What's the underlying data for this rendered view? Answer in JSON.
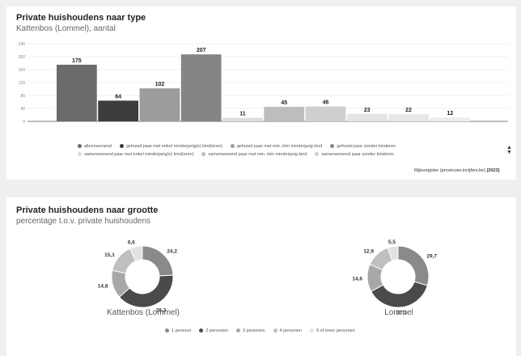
{
  "card1": {
    "title": "Private huishoudens naar type",
    "subtitle": "Kattenbos  (Lommel), aantal",
    "source_text": "Rijksregister (provincies.incijfers.be)",
    "source_year": "2023"
  },
  "card2": {
    "title": "Private huishoudens naar grootte",
    "subtitle": "percentage t.o.v. private huishoudens"
  },
  "chart_data": [
    {
      "type": "bar",
      "categories": [
        "alleenwonend",
        "gehuwd paar met enkel minderjarig(e) kind(eren)",
        "gehuwd paar met min. één minderjarig kind",
        "gehuwd paar zonder kinderen",
        "samenwonend paar met enkel minderjarig(e) kind(eren)",
        "samenwonend paar met min. één minderjarig kind",
        "samenwonend paar zonder kinderen",
        "",
        "",
        "",
        ""
      ],
      "values": [
        175,
        64,
        102,
        207,
        11,
        45,
        46,
        23,
        22,
        12,
        0
      ],
      "colors": [
        "#6b6b6b",
        "#3c3c3c",
        "#9c9c9c",
        "#858585",
        "#dcdcdc",
        "#bdbdbd",
        "#cfcfcf",
        "#e4e4e4",
        "#e8e8e8",
        "#ececec",
        "#ffffff"
      ],
      "yticks": [
        0,
        40,
        80,
        120,
        160,
        200,
        240
      ],
      "ylim": [
        0,
        240
      ],
      "legend": [
        {
          "label": "alleenwonend",
          "color": "#6b6b6b"
        },
        {
          "label": "gehuwd paar met enkel minderjarig(e) kind(eren)",
          "color": "#3c3c3c"
        },
        {
          "label": "gehuwd paar met min. één minderjarig kind",
          "color": "#9c9c9c"
        },
        {
          "label": "gehuwd paar zonder kinderen",
          "color": "#858585"
        },
        {
          "label": "samenwonend paar met enkel minderjarig(e) kind(eren)",
          "color": "#dcdcdc"
        },
        {
          "label": "samenwonend paar met min. één minderjarig kind",
          "color": "#bdbdbd"
        },
        {
          "label": "samenwonend paar zonder kinderen",
          "color": "#cfcfcf"
        }
      ],
      "grid": true,
      "legend_position": "bottom"
    },
    {
      "type": "pie",
      "donut": true,
      "name": "Kattenbos  (Lommel)",
      "labels": [
        "1 persoon",
        "2 personen",
        "3 personen",
        "4 personen",
        "5 of meer personen"
      ],
      "values": [
        24.2,
        39.3,
        14.8,
        15.1,
        6.6
      ],
      "value_labels": [
        "24,2",
        "39,3",
        "14,8",
        "15,1",
        "6,6"
      ]
    },
    {
      "type": "pie",
      "donut": true,
      "name": "Lommel",
      "labels": [
        "1 persoon",
        "2 personen",
        "3 personen",
        "4 personen",
        "5 of meer personen"
      ],
      "values": [
        29.7,
        37.3,
        14.6,
        12.9,
        5.5
      ],
      "value_labels": [
        "29,7",
        "37,3",
        "14,6",
        "12,9",
        "5,5"
      ]
    }
  ],
  "donut_legend": [
    {
      "label": "1 persoon",
      "color": "#8a8a8a"
    },
    {
      "label": "2 personen",
      "color": "#4a4a4a"
    },
    {
      "label": "3 personen",
      "color": "#a8a8a8"
    },
    {
      "label": "4 personen",
      "color": "#bfbfbf"
    },
    {
      "label": "5 of meer personen",
      "color": "#e2e2e2"
    }
  ],
  "colors": {
    "donut": [
      "#8a8a8a",
      "#4a4a4a",
      "#a8a8a8",
      "#bfbfbf",
      "#e2e2e2"
    ]
  }
}
